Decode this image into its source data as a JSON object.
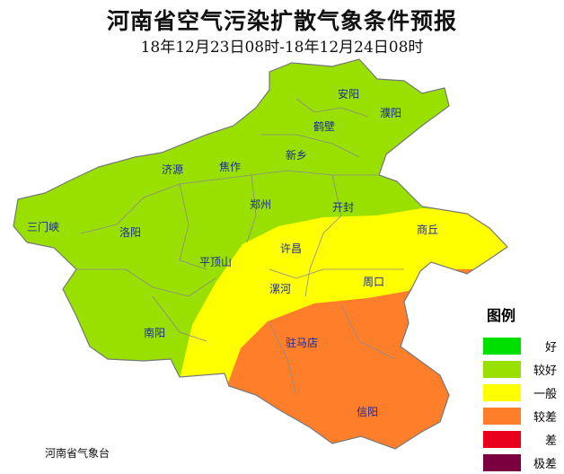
{
  "title": "河南省空气污染扩散气象条件预报",
  "subtitle": "18年12月23日08时-18年12月24日08时",
  "cities": [
    "安阳",
    "濮阳",
    "鹤壁",
    "新乡",
    "济源",
    "焦作",
    "郑州",
    "开封",
    "三门峡",
    "洛阳",
    "商丘",
    "许昌",
    "平顶山",
    "漯河",
    "周口",
    "南阳",
    "驻马店",
    "信阳"
  ],
  "legend": {
    "title": "图例",
    "items": [
      {
        "label": "好",
        "color": "#00e000"
      },
      {
        "label": "较好",
        "color": "#99e000"
      },
      {
        "label": "一般",
        "color": "#ffff00"
      },
      {
        "label": "较差",
        "color": "#ff7e2a"
      },
      {
        "label": "差",
        "color": "#e8001c"
      },
      {
        "label": "极差",
        "color": "#7a0040"
      }
    ]
  },
  "source": "河南省气象台"
}
